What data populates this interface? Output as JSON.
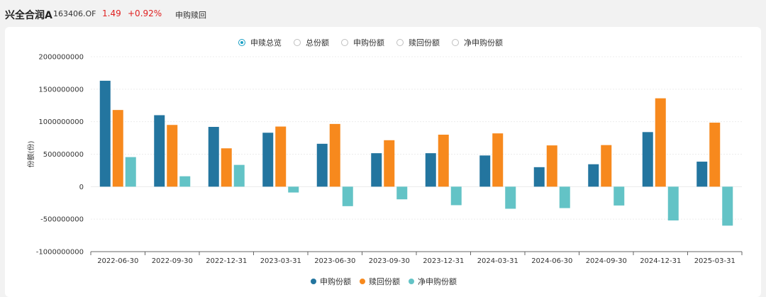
{
  "header": {
    "fund_name": "兴全合润A",
    "fund_code": "163406.OF",
    "price": "1.49",
    "change_pct": "+0.92%",
    "section_title": "申购赎回"
  },
  "view_options": [
    {
      "label": "申赎总览",
      "selected": true
    },
    {
      "label": "总份额",
      "selected": false
    },
    {
      "label": "申购份额",
      "selected": false
    },
    {
      "label": "赎回份额",
      "selected": false
    },
    {
      "label": "净申购份额",
      "selected": false
    }
  ],
  "colors": {
    "accent": "#1a9fc4",
    "price_up": "#e02020",
    "subscribe": "#23759f",
    "redeem": "#f7891d",
    "net": "#63c3c6"
  },
  "chart_data": {
    "type": "bar",
    "ylabel": "份额(份)",
    "xlabel": "",
    "ylim": [
      -1000000000,
      2000000000
    ],
    "yticks": [
      "2000000000",
      "1500000000",
      "1000000000",
      "500000000",
      "0",
      "-500000000",
      "-1000000000"
    ],
    "grid": true,
    "legend_position": "bottom",
    "categories": [
      "2022-06-30",
      "2022-09-30",
      "2022-12-31",
      "2023-03-31",
      "2023-06-30",
      "2023-09-30",
      "2023-12-31",
      "2024-03-31",
      "2024-06-30",
      "2024-09-30",
      "2024-12-31",
      "2025-03-31"
    ],
    "series": [
      {
        "name": "申购份额",
        "color": "#23759f",
        "values": [
          1630000000,
          1100000000,
          920000000,
          830000000,
          660000000,
          515000000,
          515000000,
          480000000,
          300000000,
          345000000,
          840000000,
          385000000
        ]
      },
      {
        "name": "赎回份额",
        "color": "#f7891d",
        "values": [
          1180000000,
          950000000,
          590000000,
          925000000,
          965000000,
          715000000,
          800000000,
          820000000,
          635000000,
          640000000,
          1360000000,
          985000000
        ]
      },
      {
        "name": "净申购份额",
        "color": "#63c3c6",
        "values": [
          455000000,
          160000000,
          335000000,
          -90000000,
          -300000000,
          -195000000,
          -285000000,
          -340000000,
          -330000000,
          -290000000,
          -520000000,
          -600000000
        ]
      }
    ]
  }
}
